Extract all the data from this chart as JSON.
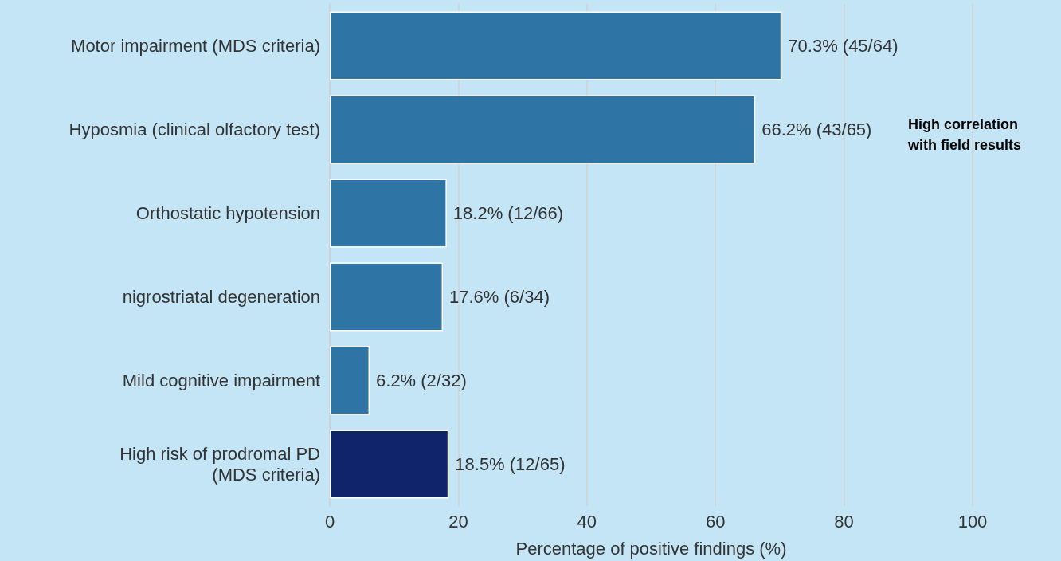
{
  "chart_data": {
    "type": "bar",
    "orientation": "horizontal",
    "xlabel": "Percentage of positive findings (%)",
    "categories": [
      "Motor impairment (MDS criteria)",
      "Hyposmia (clinical olfactory test)",
      "Orthostatic hypotension",
      "nigrostriatal degeneration",
      "Mild cognitive impairment",
      "High risk of prodromal PD\n(MDS criteria)"
    ],
    "values": [
      70.3,
      66.2,
      18.2,
      17.6,
      6.2,
      18.5
    ],
    "colors": [
      "#2e74a4",
      "#2e74a4",
      "#2e74a4",
      "#2e74a4",
      "#2e74a4",
      "#0f246b"
    ],
    "value_labels": [
      "70.3% (45/64)",
      "66.2% (43/65)",
      "18.2% (12/66)",
      "17.6% (6/34)",
      "6.2% (2/32)",
      "18.5% (12/65)"
    ],
    "xlim": [
      0,
      100
    ],
    "xticks": [
      0,
      20,
      40,
      60,
      80,
      100
    ],
    "grid": "x",
    "annotations": [
      "High correlation with field results"
    ]
  }
}
